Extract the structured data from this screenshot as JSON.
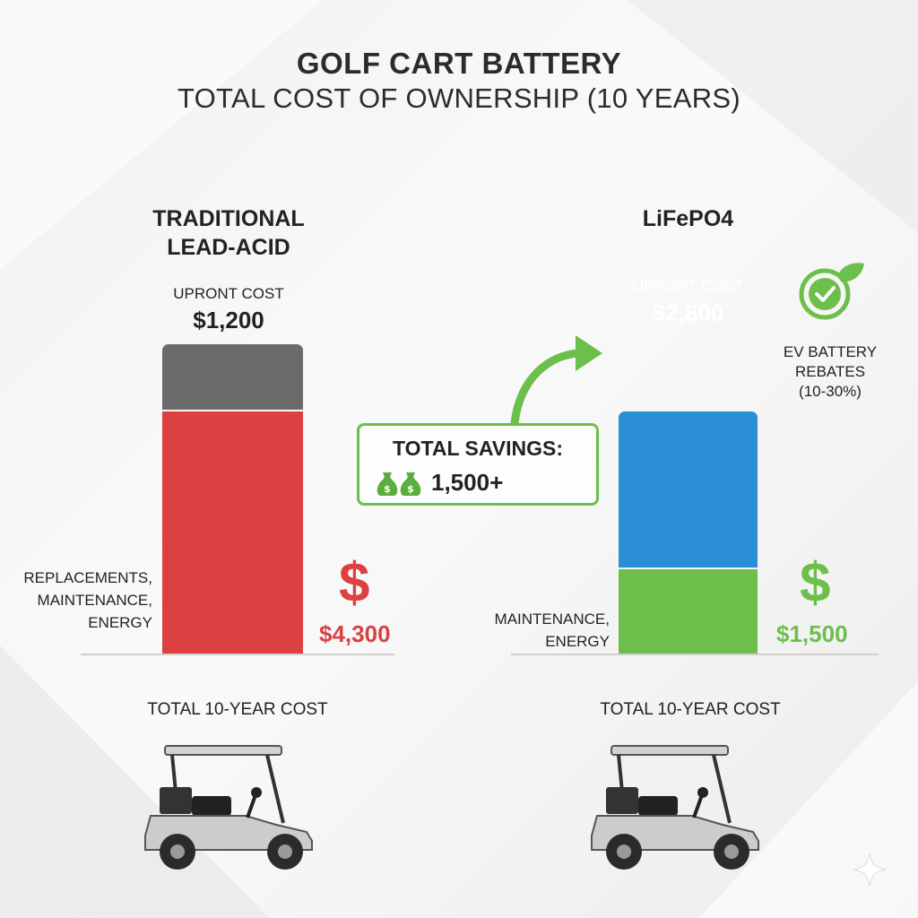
{
  "title_line1": "GOLF CART BATTERY",
  "title_line2": "TOTAL COST OF OWNERSHIP (10 YEARS)",
  "chart_data": {
    "type": "bar",
    "stacked": true,
    "categories": [
      "TRADITIONAL LEAD-ACID",
      "LiFePO4"
    ],
    "series": [
      {
        "name": "UPRONT COST",
        "values": [
          1200,
          2800
        ]
      },
      {
        "name": "",
        "values": [
          4300,
          1500
        ]
      }
    ],
    "colors": {
      "lead_upfront": "#6b6b6b",
      "lead_other": "#dc4040",
      "lfp_upfront": "#2b8fd8",
      "lfp_other": "#6cbf4a"
    }
  },
  "lead": {
    "heading_line1": "TRADITIONAL",
    "heading_line2": "LEAD-ACID",
    "upfront_label": "UPRONT COST",
    "upfront_value": "$1,200",
    "other_label_line1": "REPLACEMENTS,",
    "other_label_line2": "MAINTENANCE,",
    "other_label_line3": "ENERGY",
    "dollar_symbol": "$",
    "other_value": "$4,300",
    "total_label": "TOTAL 10-YEAR COST"
  },
  "lfp": {
    "heading": "LiFePO4",
    "upfront_label": "UPRONT COST",
    "upfront_value": "$2,800",
    "other_label_line1": "MAINTENANCE,",
    "other_label_line2": "ENERGY",
    "dollar_symbol": "$",
    "other_value": "$1,500",
    "total_label": "TOTAL 10-YEAR COST"
  },
  "savings": {
    "label": "TOTAL SAVINGS:",
    "value": "1,500+",
    "icon": "money-bags-icon"
  },
  "rebate": {
    "line1": "EV BATTERY",
    "line2": "REBATES",
    "line3": "(10-30%)",
    "icon": "eco-check-badge-icon"
  }
}
